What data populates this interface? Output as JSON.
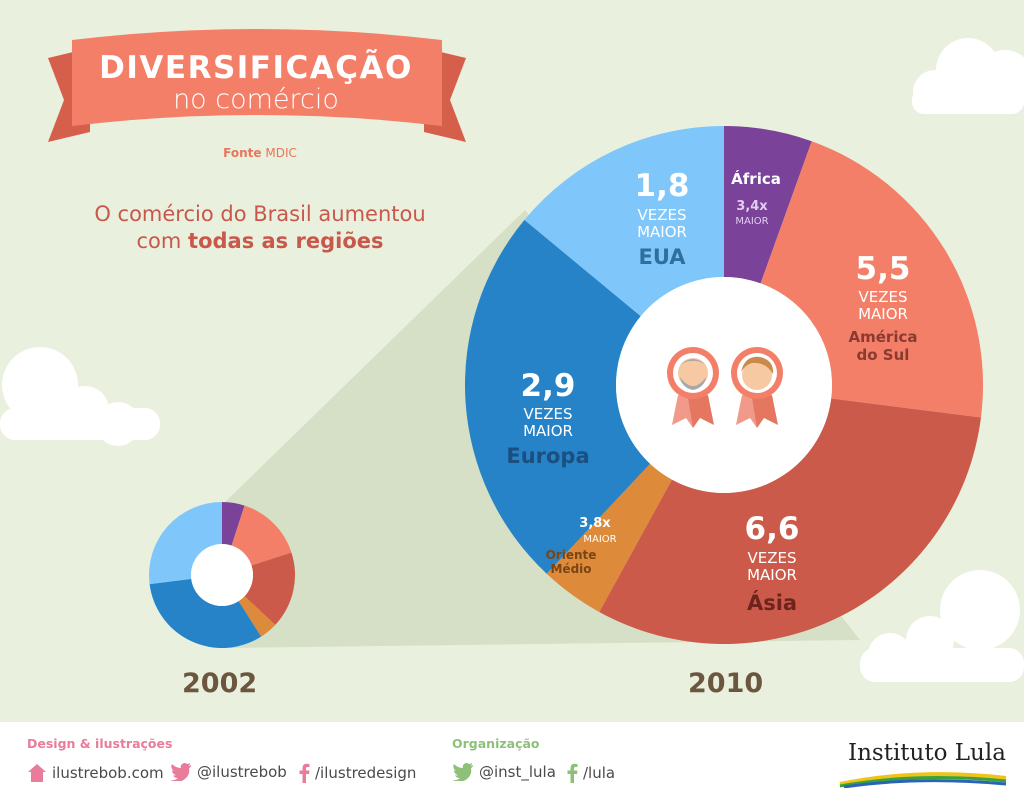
{
  "header": {
    "title": "DIVERSIFICAÇÃO",
    "subtitle": "no comércio",
    "source_label": "Fonte",
    "source_value": "MDIC"
  },
  "headline": {
    "line1": "O comércio do Brasil aumentou",
    "line2_pre": "com ",
    "line2_bold": "todas as regiões"
  },
  "colors": {
    "africa": "#7b429a",
    "america_do_sul": "#f47f68",
    "asia": "#cc5a4a",
    "oriente_medio": "#dd8a3a",
    "europa": "#2783c7",
    "eua": "#7fc7fb",
    "background": "#e9f0dd",
    "ribbon": "#f47f68"
  },
  "chart_data": [
    {
      "type": "pie",
      "title": "2002",
      "series": [
        {
          "name": "África",
          "value": 5
        },
        {
          "name": "América do Sul",
          "value": 15
        },
        {
          "name": "Ásia",
          "value": 17
        },
        {
          "name": "Oriente Médio",
          "value": 4
        },
        {
          "name": "Europa",
          "value": 32
        },
        {
          "name": "EUA",
          "value": 27
        }
      ]
    },
    {
      "type": "pie",
      "title": "2010",
      "series": [
        {
          "name": "África",
          "value": 5.5,
          "growth": "3,4x",
          "growth_label": "MAIOR"
        },
        {
          "name": "América do Sul",
          "value": 21.5,
          "growth": "5,5",
          "growth_label": "VEZES MAIOR"
        },
        {
          "name": "Ásia",
          "value": 31,
          "growth": "6,6",
          "growth_label": "VEZES MAIOR"
        },
        {
          "name": "Oriente Médio",
          "value": 4,
          "growth": "3,8x",
          "growth_label": "MAIOR"
        },
        {
          "name": "Europa",
          "value": 24,
          "growth": "2,9",
          "growth_label": "VEZES MAIOR"
        },
        {
          "name": "EUA",
          "value": 14,
          "growth": "1,8",
          "growth_label": "VEZES MAIOR"
        }
      ]
    }
  ],
  "labels": {
    "eua": {
      "value": "1,8",
      "line1": "VEZES",
      "line2": "MAIOR",
      "name": "EUA"
    },
    "africa": {
      "name": "África",
      "value": "3,4x",
      "line1": "MAIOR"
    },
    "america": {
      "value": "5,5",
      "line1": "VEZES",
      "line2": "MAIOR",
      "name1": "América",
      "name2": "do Sul"
    },
    "europa": {
      "value": "2,9",
      "line1": "VEZES",
      "line2": "MAIOR",
      "name": "Europa"
    },
    "oriente": {
      "value": "3,8x",
      "line1": "MAIOR",
      "name1": "Oriente",
      "name2": "Médio"
    },
    "asia": {
      "value": "6,6",
      "line1": "VEZES",
      "line2": "MAIOR",
      "name": "Ásia"
    }
  },
  "years": {
    "small": "2002",
    "big": "2010"
  },
  "footer": {
    "design_label": "Design & ilustrações",
    "site": "ilustrebob.com",
    "twitter1": "@ilustrebob",
    "facebook1": "/ilustredesign",
    "org_label": "Organização",
    "twitter2": "@inst_lula",
    "facebook2": "/lula",
    "brand": "Instituto Lula"
  }
}
